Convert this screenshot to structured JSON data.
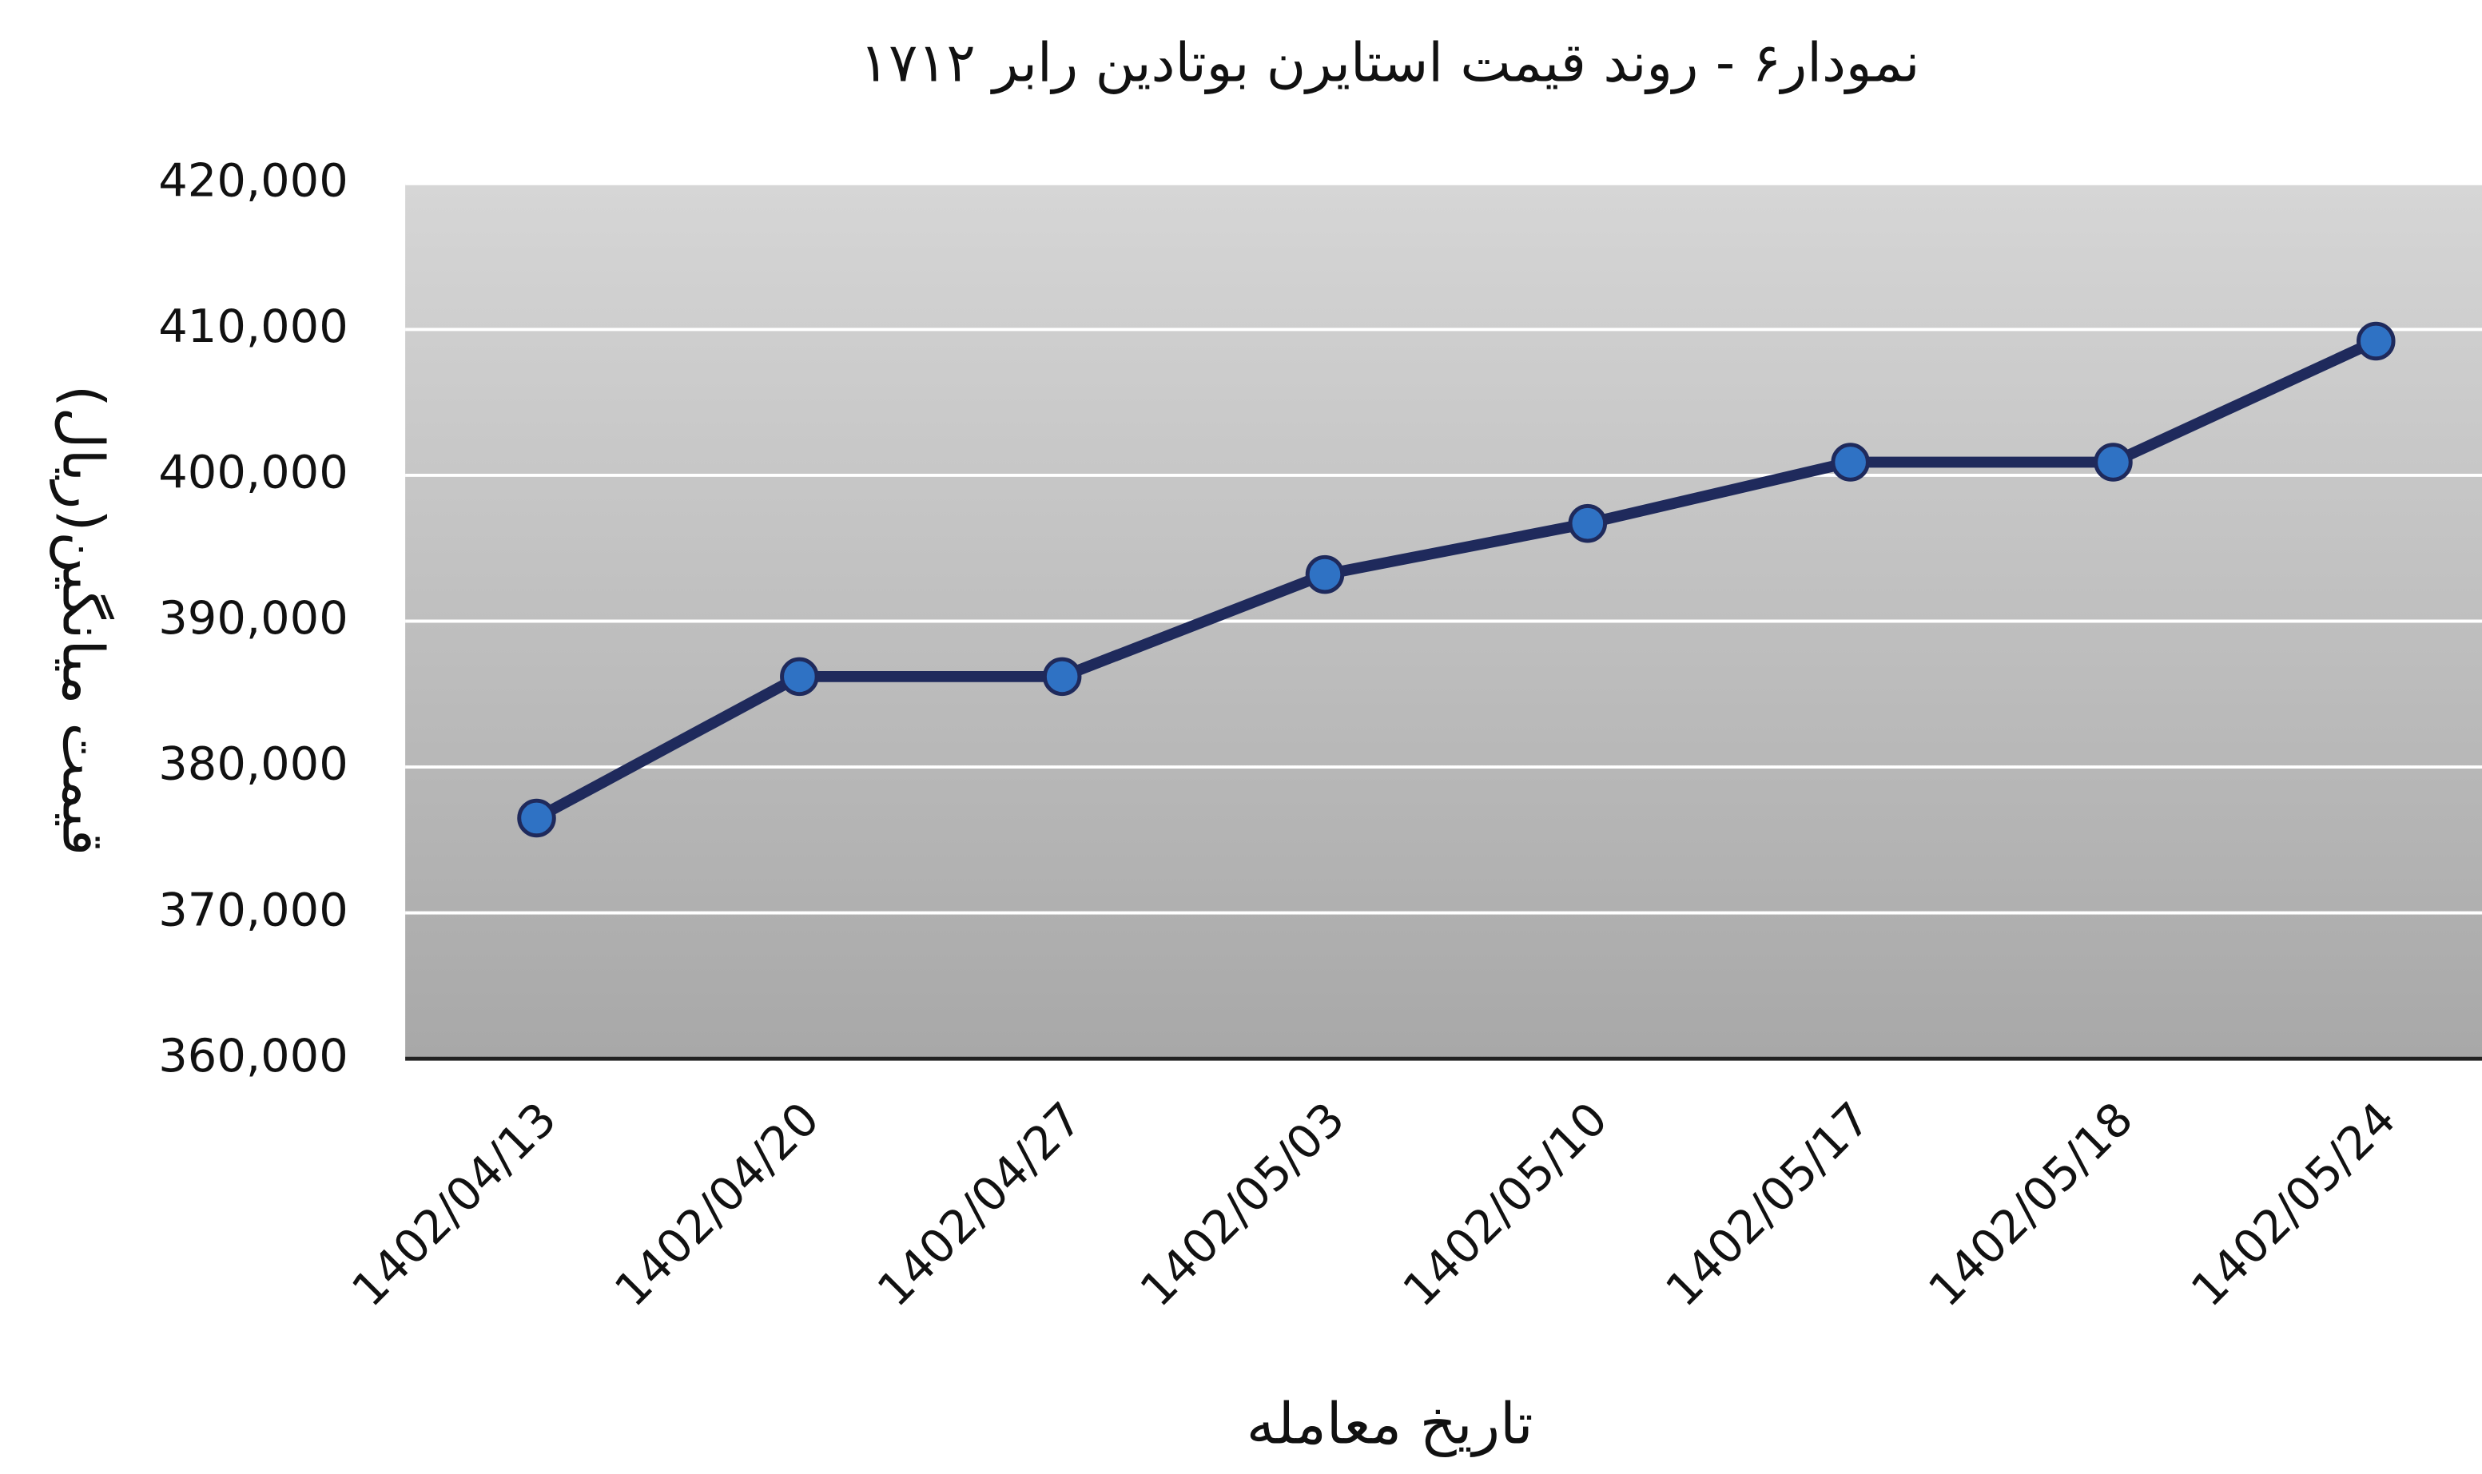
{
  "chart_data": {
    "type": "line",
    "title": "نمودار۶ - روند  قیمت  استایرن بوتادین رابر ۱۷۱۲",
    "x_label": "تاریخ معامله",
    "y_label": "قیمت میانگین(ریال)",
    "categories": [
      "1402/04/13",
      "1402/04/20",
      "1402/04/27",
      "1402/05/03",
      "1402/05/10",
      "1402/05/17",
      "1402/05/18",
      "1402/05/24"
    ],
    "series": [
      {
        "name": "قیمت میانگین",
        "color": "#1f2a5c",
        "marker_color": "#2f72c4",
        "values": [
          376500,
          386200,
          386200,
          393200,
          396700,
          400900,
          400900,
          409200
        ]
      }
    ],
    "ylim": [
      360000,
      420000
    ],
    "yticks": [
      {
        "value": 360000,
        "label": "360,000"
      },
      {
        "value": 370000,
        "label": "370,000"
      },
      {
        "value": 380000,
        "label": "380,000"
      },
      {
        "value": 390000,
        "label": "390,000"
      },
      {
        "value": 400000,
        "label": "400,000"
      },
      {
        "value": 410000,
        "label": "410,000"
      },
      {
        "value": 420000,
        "label": "420,000"
      }
    ],
    "grid": true
  }
}
